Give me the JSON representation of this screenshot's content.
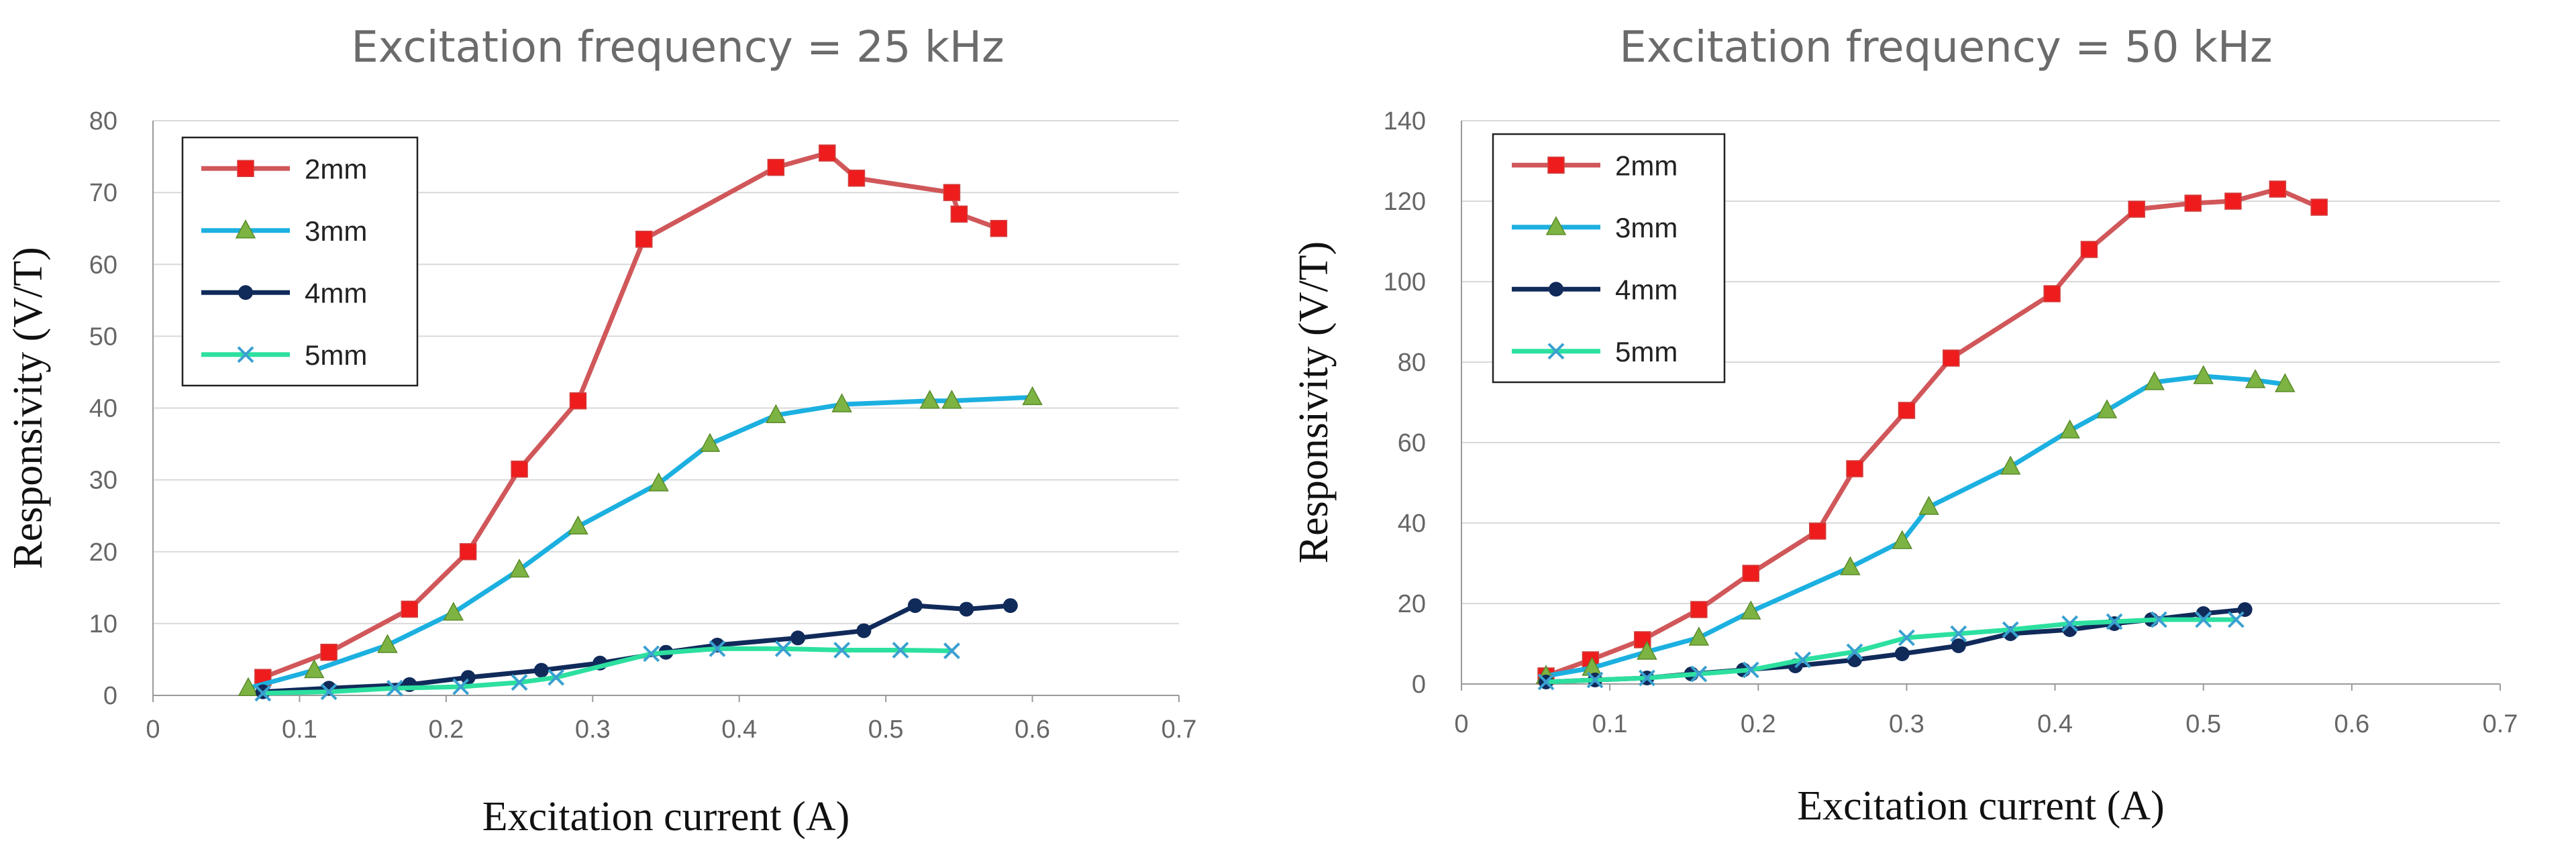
{
  "chart_data": [
    {
      "type": "line",
      "title": "Excitation frequency = 25 kHz",
      "xlabel": "Excitation current  (A)",
      "ylabel": "Responsivity  (V/T)",
      "xlim": [
        0,
        0.7
      ],
      "ylim": [
        0,
        80
      ],
      "xticks": [
        "0",
        "0.1",
        "0.2",
        "0.3",
        "0.4",
        "0.5",
        "0.6",
        "0.7"
      ],
      "yticks": [
        "0",
        "10",
        "20",
        "30",
        "40",
        "50",
        "60",
        "70",
        "80"
      ],
      "grid": "horizontal",
      "legend": "top-left",
      "series": [
        {
          "name": "2mm",
          "color": "#d0575a",
          "marker": "square",
          "marker_color": "#ee1c1c",
          "x": [
            0.075,
            0.12,
            0.175,
            0.215,
            0.25,
            0.29,
            0.335,
            0.425,
            0.46,
            0.48,
            0.545,
            0.55,
            0.577
          ],
          "y": [
            2.5,
            6,
            12,
            20,
            31.5,
            41,
            63.5,
            73.5,
            75.5,
            72,
            70,
            67,
            65
          ]
        },
        {
          "name": "3mm",
          "color": "#1cb0e0",
          "marker": "triangle",
          "marker_color": "#7cb342",
          "x": [
            0.065,
            0.11,
            0.16,
            0.205,
            0.25,
            0.29,
            0.345,
            0.38,
            0.425,
            0.47,
            0.53,
            0.545,
            0.6
          ],
          "y": [
            1,
            3.5,
            7,
            11.5,
            17.5,
            23.5,
            29.5,
            35,
            39,
            40.5,
            41,
            41,
            41.5
          ]
        },
        {
          "name": "4mm",
          "color": "#102a5a",
          "marker": "circle",
          "marker_color": "#102a5a",
          "x": [
            0.075,
            0.12,
            0.175,
            0.215,
            0.265,
            0.305,
            0.35,
            0.385,
            0.44,
            0.485,
            0.52,
            0.555,
            0.585
          ],
          "y": [
            0.5,
            1,
            1.5,
            2.5,
            3.5,
            4.5,
            6,
            7,
            8,
            9,
            12.5,
            12,
            12.5
          ]
        },
        {
          "name": "5mm",
          "color": "#2de0a0",
          "marker": "x",
          "marker_color": "#3aa0d0",
          "x": [
            0.075,
            0.12,
            0.165,
            0.21,
            0.25,
            0.275,
            0.34,
            0.385,
            0.43,
            0.47,
            0.51,
            0.545
          ],
          "y": [
            0.3,
            0.5,
            1,
            1.2,
            1.8,
            2.5,
            5.8,
            6.5,
            6.5,
            6.3,
            6.3,
            6.2
          ]
        }
      ]
    },
    {
      "type": "line",
      "title": "Excitation frequency = 50 kHz",
      "xlabel": "Excitation current  (A)",
      "ylabel": "Responsivity  (V/T)",
      "xlim": [
        0,
        0.7
      ],
      "ylim": [
        0,
        140
      ],
      "xticks": [
        "0",
        "0.1",
        "0.2",
        "0.3",
        "0.4",
        "0.5",
        "0.6",
        "0.7"
      ],
      "yticks": [
        "0",
        "20",
        "40",
        "60",
        "80",
        "100",
        "120",
        "140"
      ],
      "grid": "horizontal",
      "legend": "top-left",
      "series": [
        {
          "name": "2mm",
          "color": "#d0575a",
          "marker": "square",
          "marker_color": "#ee1c1c",
          "x": [
            0.057,
            0.087,
            0.122,
            0.16,
            0.195,
            0.24,
            0.265,
            0.3,
            0.33,
            0.398,
            0.423,
            0.455,
            0.493,
            0.52,
            0.55,
            0.578
          ],
          "y": [
            2,
            6,
            11,
            18.5,
            27.5,
            38,
            53.5,
            68,
            81,
            97,
            108,
            118,
            119.5,
            120,
            123,
            118.5
          ]
        },
        {
          "name": "3mm",
          "color": "#1cb0e0",
          "marker": "triangle",
          "marker_color": "#7cb342",
          "x": [
            0.057,
            0.088,
            0.125,
            0.16,
            0.195,
            0.262,
            0.297,
            0.315,
            0.37,
            0.41,
            0.435,
            0.467,
            0.5,
            0.535,
            0.555
          ],
          "y": [
            2,
            4,
            8,
            11.5,
            18,
            29,
            35.5,
            44,
            54,
            63,
            68,
            75,
            76.5,
            75.5,
            74.5
          ]
        },
        {
          "name": "4mm",
          "color": "#102a5a",
          "marker": "circle",
          "marker_color": "#102a5a",
          "x": [
            0.057,
            0.09,
            0.125,
            0.155,
            0.19,
            0.225,
            0.265,
            0.297,
            0.335,
            0.37,
            0.41,
            0.44,
            0.465,
            0.5,
            0.528
          ],
          "y": [
            0.5,
            1,
            1.5,
            2.5,
            3.5,
            4.5,
            6,
            7.5,
            9.5,
            12.5,
            13.5,
            15,
            16,
            17.5,
            18.5
          ]
        },
        {
          "name": "5mm",
          "color": "#2de0a0",
          "marker": "x",
          "marker_color": "#3aa0d0",
          "x": [
            0.057,
            0.09,
            0.125,
            0.16,
            0.195,
            0.23,
            0.265,
            0.3,
            0.335,
            0.37,
            0.41,
            0.44,
            0.47,
            0.5,
            0.522
          ],
          "y": [
            0.5,
            1,
            1.5,
            2.5,
            3.5,
            6,
            8,
            11.5,
            12.5,
            13.5,
            15,
            15.5,
            16,
            16,
            16
          ]
        }
      ]
    }
  ]
}
